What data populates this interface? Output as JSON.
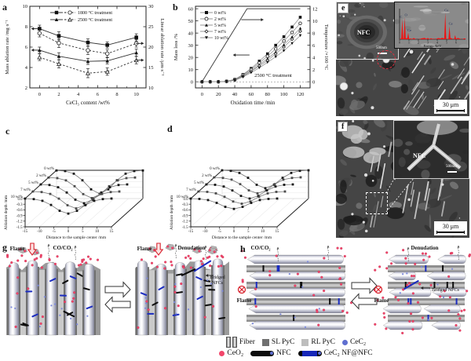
{
  "panels": {
    "a": {
      "label": "a"
    },
    "b": {
      "label": "b"
    },
    "c": {
      "label": "c"
    },
    "d": {
      "label": "d"
    },
    "e": {
      "label": "e",
      "nfc": "NFC",
      "inset_scale": "500nm",
      "scalebar": "30 μm"
    },
    "f": {
      "label": "f",
      "nfc": "NFC",
      "inset_scale": "500nm",
      "scalebar": "30 μm"
    },
    "g": {
      "label": "g",
      "left": {
        "flame": "Flame",
        "gas": "CO/CO₂"
      },
      "right": {
        "flame": "Flame",
        "denudation": "Denudation",
        "bridged_line1": "Bridged",
        "bridged_line2": "NFCs"
      }
    },
    "h": {
      "label": "h",
      "left": {
        "gas": "CO/CO₂",
        "flame": "Flame"
      },
      "right": {
        "denudation": "Denudation",
        "flame": "Flame",
        "bridged": "Bridged NFCs"
      }
    }
  },
  "legend": {
    "fiber": "Fiber",
    "sl_pyc": "SL PyC",
    "rl_pyc": "RL PyC",
    "cec2": "CeC₂",
    "ceo2": "CeO₂",
    "nfc": "NFC",
    "cec2nf": "CeC₂ NF@NFC"
  },
  "colors": {
    "ceo2_dot": "#f2476b",
    "cec2_dot": "#7c89dd",
    "nfc_rod": "#0c0c0c",
    "cec2nf_rod": "#1b2cc0",
    "flame_red": "#d8232e",
    "spectrum_red": "#ee1111"
  },
  "chart_data": [
    {
      "id": "a",
      "type": "line",
      "xlabel": "CeCl₃ content /wt%",
      "ylabel_left": "Mass ablation rate /mg·s⁻¹",
      "ylabel_right": "Linear ablation rate /μm·s⁻¹",
      "xlim": [
        -1,
        11
      ],
      "ylim_left": [
        2,
        10
      ],
      "ylim_right": [
        10,
        30
      ],
      "xticks": [
        0,
        2,
        4,
        6,
        8,
        10
      ],
      "yticks_left": [
        2,
        4,
        6,
        8,
        10
      ],
      "yticks_right": [
        10,
        15,
        20,
        25,
        30
      ],
      "legend": [
        "1800 °C treatment",
        "2500 °C treatment"
      ],
      "x": [
        0,
        2,
        5,
        7,
        10
      ],
      "series": [
        {
          "name": "1800 °C mass ablation rate",
          "axis": "left",
          "marker": "square-filled",
          "line": "solid",
          "values": [
            7.8,
            7.1,
            6.45,
            6.2,
            6.95
          ],
          "error": [
            0.35,
            0.4,
            0.35,
            0.3,
            0.35
          ]
        },
        {
          "name": "1800 °C linear ablation rate",
          "axis": "right",
          "marker": "circle-open",
          "line": "dashed",
          "values": [
            23.4,
            21.0,
            19.2,
            18.4,
            20.9
          ],
          "error": [
            0.9,
            1.1,
            1.0,
            0.9,
            0.9
          ]
        },
        {
          "name": "2500 °C mass ablation rate",
          "axis": "left",
          "marker": "triangle-filled",
          "line": "solid",
          "values": [
            5.7,
            5.1,
            4.6,
            4.65,
            5.45
          ],
          "error": [
            0.3,
            0.35,
            0.3,
            0.3,
            0.35
          ]
        },
        {
          "name": "2500 °C linear ablation rate",
          "axis": "right",
          "marker": "triangle-open",
          "line": "dashed",
          "values": [
            17.5,
            15.9,
            13.6,
            14.0,
            16.8
          ],
          "error": [
            0.8,
            1.0,
            1.1,
            0.9,
            0.9
          ]
        }
      ]
    },
    {
      "id": "b",
      "type": "line",
      "xlabel": "Oxidation time /min",
      "ylabel_left": "Mass loss /%",
      "ylabel_right": "Temperature /×100 °C",
      "xlim": [
        -8,
        132
      ],
      "ylim_left": [
        -5,
        62
      ],
      "ylim_right": [
        0,
        12
      ],
      "xticks": [
        0,
        20,
        40,
        60,
        80,
        100,
        120
      ],
      "yticks_left": [
        0,
        10,
        20,
        30,
        40,
        50,
        60
      ],
      "yticks_right": [
        0,
        2,
        4,
        6,
        8,
        10,
        12
      ],
      "annotation": "2500 °C treatment",
      "x": [
        0,
        10,
        20,
        30,
        40,
        50,
        60,
        70,
        80,
        90,
        100,
        110,
        120
      ],
      "series": [
        {
          "name": "0 wt%",
          "marker": "square-filled",
          "values": [
            0,
            0,
            0,
            0.5,
            2,
            6,
            11,
            17,
            23,
            30,
            37,
            45,
            53
          ]
        },
        {
          "name": "2 wt%",
          "marker": "circle-open",
          "values": [
            0,
            0,
            0,
            0.4,
            1.8,
            5.5,
            10,
            15.5,
            21,
            27,
            33.5,
            40.5,
            48
          ]
        },
        {
          "name": "5 wt%",
          "marker": "triangle-filled",
          "values": [
            0,
            0,
            0,
            0.3,
            1.5,
            5,
            9,
            14,
            19,
            24.5,
            30.5,
            37,
            44
          ]
        },
        {
          "name": "7 wt%",
          "marker": "diamond-open",
          "values": [
            0,
            0,
            0,
            0.3,
            1.3,
            4.5,
            8.5,
            13,
            17.5,
            23,
            28.5,
            35,
            41.5
          ]
        },
        {
          "name": "10 wt%",
          "marker": "itriangle-filled",
          "values": [
            0,
            0,
            0,
            0.2,
            1.2,
            4,
            7.5,
            11.5,
            16,
            20.5,
            25.5,
            31.5,
            38
          ]
        }
      ],
      "temperature_series": {
        "name": "Temperature ramp",
        "axis": "right",
        "x": [
          0,
          55,
          120
        ],
        "values": [
          0,
          12,
          12
        ]
      }
    },
    {
      "id": "c",
      "type": "waterfall-3d",
      "xlabel": "Distance to the sample center /mm",
      "zlabel": "Ablation depth /mm",
      "xticks": [
        -15,
        -10,
        -5,
        0,
        5,
        10,
        15
      ],
      "zticks": [
        0.0,
        -0.3,
        -0.6,
        -0.9,
        -1.2,
        -1.5
      ],
      "x": [
        -15,
        -12,
        -9,
        -6,
        -3,
        0,
        3,
        6,
        9,
        12,
        15
      ],
      "series": [
        {
          "name": "0 wt%",
          "values": [
            -0.01,
            -0.04,
            -0.18,
            -0.53,
            -1.01,
            -1.25,
            -1.01,
            -0.53,
            -0.18,
            -0.04,
            -0.01
          ]
        },
        {
          "name": "2 wt%",
          "values": [
            -0.01,
            -0.04,
            -0.16,
            -0.47,
            -0.89,
            -1.1,
            -0.89,
            -0.47,
            -0.16,
            -0.04,
            -0.01
          ]
        },
        {
          "name": "5 wt%",
          "values": [
            0,
            -0.03,
            -0.15,
            -0.43,
            -0.81,
            -1.0,
            -0.81,
            -0.43,
            -0.15,
            -0.03,
            0
          ]
        },
        {
          "name": "7 wt%",
          "values": [
            0,
            -0.03,
            -0.13,
            -0.38,
            -0.73,
            -0.9,
            -0.73,
            -0.38,
            -0.13,
            -0.03,
            0
          ]
        },
        {
          "name": "10 wt%",
          "values": [
            0,
            -0.03,
            -0.12,
            -0.34,
            -0.65,
            -0.8,
            -0.65,
            -0.34,
            -0.12,
            -0.03,
            0
          ]
        }
      ]
    },
    {
      "id": "d",
      "type": "waterfall-3d",
      "xlabel": "Distance to the sample center /mm",
      "zlabel": "Ablation depth /mm",
      "xticks": [
        -15,
        -10,
        -5,
        0,
        5,
        10,
        15
      ],
      "zticks": [
        0.0,
        -0.3,
        -0.6,
        -0.9,
        -1.2,
        -1.5
      ],
      "x": [
        -15,
        -12,
        -9,
        -6,
        -3,
        0,
        3,
        6,
        9,
        12,
        15
      ],
      "series": [
        {
          "name": "0 wt%",
          "values": [
            0,
            -0.03,
            -0.14,
            -0.4,
            -0.77,
            -0.95,
            -0.77,
            -0.4,
            -0.14,
            -0.03,
            0
          ]
        },
        {
          "name": "2 wt%",
          "values": [
            0,
            -0.03,
            -0.12,
            -0.36,
            -0.69,
            -0.85,
            -0.69,
            -0.36,
            -0.12,
            -0.03,
            0
          ]
        },
        {
          "name": "5 wt%",
          "values": [
            0,
            -0.02,
            -0.11,
            -0.32,
            -0.61,
            -0.75,
            -0.61,
            -0.32,
            -0.11,
            -0.02,
            0
          ]
        },
        {
          "name": "7 wt%",
          "values": [
            0,
            -0.02,
            -0.1,
            -0.28,
            -0.53,
            -0.65,
            -0.53,
            -0.28,
            -0.1,
            -0.02,
            0
          ]
        },
        {
          "name": "10 wt%",
          "values": [
            0,
            -0.02,
            -0.08,
            -0.23,
            -0.44,
            -0.55,
            -0.44,
            -0.23,
            -0.08,
            -0.02,
            0
          ]
        }
      ]
    },
    {
      "id": "e-eds",
      "type": "spectrum",
      "xlabel": "Energy /keV",
      "xticks": [
        0,
        1,
        2,
        3,
        4,
        5,
        6
      ],
      "peaks": [
        {
          "element": "C",
          "kev": 0.28,
          "rel": 0.75
        },
        {
          "element": "O",
          "kev": 0.55,
          "rel": 0.82
        },
        {
          "element": "Ce",
          "kev": 0.92,
          "rel": 0.25
        },
        {
          "element": "Ce",
          "kev": 4.85,
          "rel": 1.0
        },
        {
          "element": "Ce",
          "kev": 5.3,
          "rel": 0.5
        },
        {
          "element": "",
          "kev": 5.9,
          "rel": 0.16
        }
      ]
    }
  ]
}
